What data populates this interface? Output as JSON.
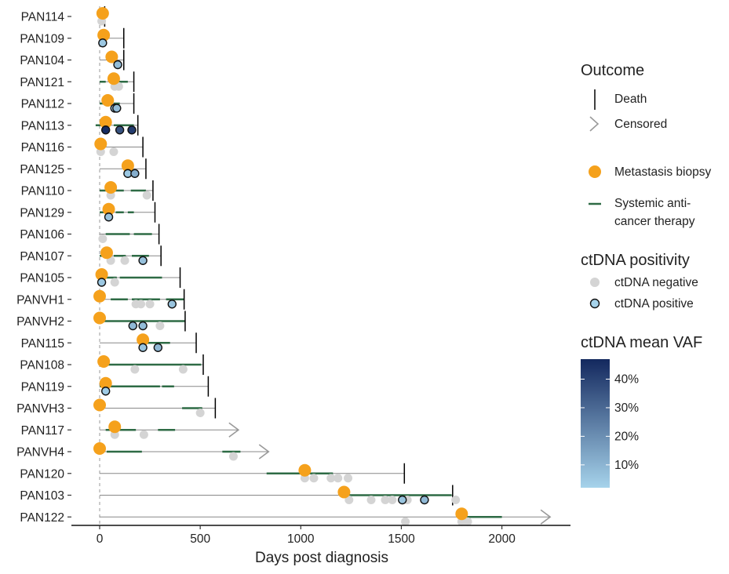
{
  "chart_data": {
    "type": "scatter",
    "xlabel": "Days post diagnosis",
    "xlim": [
      -140,
      2290
    ],
    "x_ticks": [
      "0",
      "500",
      "1000",
      "1500",
      "2000"
    ],
    "x_tick_values": [
      0,
      500,
      1000,
      1500,
      2000
    ],
    "patients": [
      {
        "id": "PAN114",
        "end": 25,
        "outcome": "death",
        "biopsy": [
          15
        ],
        "therapy": [],
        "neg": [
          10
        ],
        "pos": []
      },
      {
        "id": "PAN109",
        "end": 120,
        "outcome": "death",
        "biopsy": [
          20
        ],
        "therapy": [],
        "neg": [],
        "pos": [
          {
            "x": 15,
            "vaf": 5
          }
        ]
      },
      {
        "id": "PAN104",
        "end": 120,
        "outcome": "death",
        "biopsy": [
          60
        ],
        "therapy": [],
        "neg": [],
        "pos": [
          {
            "x": 90,
            "vaf": 8
          }
        ]
      },
      {
        "id": "PAN121",
        "end": 170,
        "outcome": "death",
        "biopsy": [
          70
        ],
        "therapy": [
          [
            0,
            30
          ],
          [
            90,
            140
          ]
        ],
        "neg": [
          75,
          95
        ],
        "pos": []
      },
      {
        "id": "PAN112",
        "end": 170,
        "outcome": "death",
        "biopsy": [
          40
        ],
        "therapy": [
          [
            0,
            25
          ],
          [
            70,
            100
          ]
        ],
        "neg": [],
        "pos": [
          {
            "x": 75,
            "vaf": 4
          },
          {
            "x": 85,
            "vaf": 8
          }
        ]
      },
      {
        "id": "PAN113",
        "end": 190,
        "outcome": "death",
        "biopsy": [
          30
        ],
        "therapy": [
          [
            -20,
            20
          ],
          [
            70,
            170
          ]
        ],
        "neg": [],
        "pos": [
          {
            "x": 30,
            "vaf": 46
          },
          {
            "x": 100,
            "vaf": 36
          },
          {
            "x": 160,
            "vaf": 42
          }
        ]
      },
      {
        "id": "PAN116",
        "end": 215,
        "outcome": "death",
        "biopsy": [
          5
        ],
        "therapy": [
          [
            -15,
            10
          ]
        ],
        "neg": [
          5,
          70
        ],
        "pos": []
      },
      {
        "id": "PAN125",
        "end": 230,
        "outcome": "death",
        "biopsy": [
          140
        ],
        "therapy": [],
        "neg": [],
        "pos": [
          {
            "x": 140,
            "vaf": 5
          },
          {
            "x": 175,
            "vaf": 12
          }
        ]
      },
      {
        "id": "PAN110",
        "end": 265,
        "outcome": "death",
        "biopsy": [
          55
        ],
        "therapy": [
          [
            0,
            30
          ],
          [
            75,
            120
          ],
          [
            155,
            230
          ]
        ],
        "neg": [
          55,
          235
        ],
        "pos": []
      },
      {
        "id": "PAN129",
        "end": 275,
        "outcome": "death",
        "biopsy": [
          45
        ],
        "therapy": [
          [
            0,
            20
          ],
          [
            80,
            120
          ],
          [
            140,
            170
          ]
        ],
        "neg": [],
        "pos": [
          {
            "x": 45,
            "vaf": 6
          }
        ]
      },
      {
        "id": "PAN106",
        "end": 295,
        "outcome": "death",
        "biopsy": [],
        "therapy": [
          [
            30,
            150
          ],
          [
            170,
            260
          ]
        ],
        "neg": [
          15
        ],
        "pos": []
      },
      {
        "id": "PAN107",
        "end": 305,
        "outcome": "death",
        "biopsy": [
          35
        ],
        "therapy": [
          [
            0,
            55
          ],
          [
            70,
            130
          ],
          [
            160,
            245
          ]
        ],
        "neg": [
          55,
          125
        ],
        "pos": [
          {
            "x": 215,
            "vaf": 7
          }
        ]
      },
      {
        "id": "PAN105",
        "end": 400,
        "outcome": "death",
        "biopsy": [
          10
        ],
        "therapy": [
          [
            0,
            85
          ],
          [
            100,
            310
          ]
        ],
        "neg": [
          75
        ],
        "pos": [
          {
            "x": 10,
            "vaf": 5
          }
        ]
      },
      {
        "id": "PANVH1",
        "end": 420,
        "outcome": "death",
        "biopsy": [
          0
        ],
        "therapy": [
          [
            55,
            140
          ],
          [
            160,
            300
          ],
          [
            330,
            420
          ]
        ],
        "neg": [
          180,
          205,
          250
        ],
        "pos": [
          {
            "x": 360,
            "vaf": 6
          }
        ]
      },
      {
        "id": "PANVH2",
        "end": 425,
        "outcome": "death",
        "biopsy": [
          0
        ],
        "therapy": [
          [
            20,
            425
          ]
        ],
        "neg": [
          300
        ],
        "pos": [
          {
            "x": 165,
            "vaf": 9
          },
          {
            "x": 215,
            "vaf": 8
          }
        ]
      },
      {
        "id": "PAN115",
        "end": 480,
        "outcome": "death",
        "biopsy": [
          215
        ],
        "therapy": [
          [
            215,
            350
          ]
        ],
        "neg": [],
        "pos": [
          {
            "x": 215,
            "vaf": 6
          },
          {
            "x": 290,
            "vaf": 9
          }
        ]
      },
      {
        "id": "PAN108",
        "end": 515,
        "outcome": "death",
        "biopsy": [
          20
        ],
        "therapy": [
          [
            40,
            505
          ]
        ],
        "neg": [
          175,
          415
        ],
        "pos": []
      },
      {
        "id": "PAN119",
        "end": 540,
        "outcome": "death",
        "biopsy": [
          30
        ],
        "therapy": [
          [
            0,
            20
          ],
          [
            35,
            300
          ],
          [
            310,
            370
          ]
        ],
        "neg": [],
        "pos": [
          {
            "x": 30,
            "vaf": 4
          }
        ]
      },
      {
        "id": "PANVH3",
        "end": 575,
        "outcome": "death",
        "biopsy": [
          0
        ],
        "therapy": [
          [
            410,
            510
          ]
        ],
        "neg": [
          500
        ],
        "pos": []
      },
      {
        "id": "PAN117",
        "end": 690,
        "outcome": "censored",
        "biopsy": [
          75
        ],
        "therapy": [
          [
            30,
            180
          ],
          [
            290,
            375
          ]
        ],
        "neg": [
          75,
          220
        ],
        "pos": []
      },
      {
        "id": "PANVH4",
        "end": 840,
        "outcome": "censored",
        "biopsy": [
          0
        ],
        "therapy": [
          [
            35,
            210
          ],
          [
            610,
            700
          ]
        ],
        "neg": [
          665
        ],
        "pos": []
      },
      {
        "id": "PAN120",
        "end": 1515,
        "outcome": "death",
        "biopsy": [
          1020
        ],
        "therapy": [
          [
            830,
            1000
          ],
          [
            1020,
            1160
          ]
        ],
        "neg": [
          1020,
          1065,
          1150,
          1185,
          1235
        ],
        "pos": []
      },
      {
        "id": "PAN103",
        "end": 1755,
        "outcome": "death",
        "biopsy": [
          1215
        ],
        "therapy": [
          [
            1215,
            1750
          ]
        ],
        "neg": [
          1240,
          1350,
          1420,
          1455,
          1530,
          1770
        ],
        "pos": [
          {
            "x": 1505,
            "vaf": 6
          },
          {
            "x": 1615,
            "vaf": 9
          }
        ]
      },
      {
        "id": "PAN122",
        "end": 2240,
        "outcome": "censored",
        "biopsy": [
          1800
        ],
        "therapy": [
          [
            1800,
            2000
          ]
        ],
        "neg": [
          1520,
          1800,
          1830
        ],
        "pos": []
      }
    ]
  },
  "legend": {
    "outcome_title": "Outcome",
    "death_label": "Death",
    "censored_label": "Censored",
    "biopsy_label_1": "Metastasis biopsy",
    "therapy_label_1": "Systemic anti-",
    "therapy_label_2": "cancer therapy",
    "positivity_title": "ctDNA positivity",
    "negative_label": "ctDNA negative",
    "positive_label": "ctDNA positive",
    "vaf_title": "ctDNA mean VAF",
    "vaf_ticks": [
      "40%",
      "30%",
      "20%",
      "10%"
    ],
    "vaf_tick_values": [
      40,
      30,
      20,
      10
    ],
    "vaf_range": [
      2,
      47
    ]
  },
  "colors": {
    "biopsy": "#F5A11C",
    "therapy": "#2E6B45",
    "negative": "#D4D4D4",
    "vaf_low": "#A6D3EB",
    "vaf_high": "#13285E",
    "line": "#888888",
    "death": "#000000",
    "censored": "#999999"
  }
}
